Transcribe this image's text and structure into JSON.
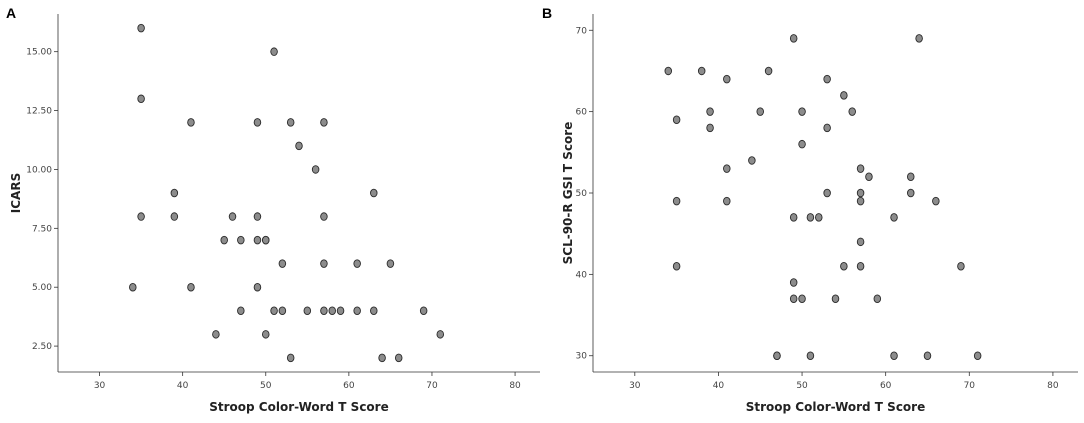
{
  "chart_data": [
    {
      "type": "scatter",
      "panel_label": "A",
      "xlabel": "Stroop Color-Word T Score",
      "ylabel": "ICARS",
      "xlim": [
        25,
        83
      ],
      "ylim": [
        1.4,
        16.6
      ],
      "xticks": [
        30,
        40,
        50,
        60,
        70,
        80
      ],
      "xtick_labels": [
        "30",
        "40",
        "50",
        "60",
        "70",
        "80"
      ],
      "yticks": [
        2.5,
        5,
        7.5,
        10,
        12.5,
        15
      ],
      "ytick_labels": [
        "2.50",
        "5.00",
        "7.50",
        "10.00",
        "12.50",
        "15.00"
      ],
      "grid": false,
      "points": [
        [
          35,
          16
        ],
        [
          35,
          13
        ],
        [
          35,
          8
        ],
        [
          34,
          5
        ],
        [
          39,
          9
        ],
        [
          39,
          8
        ],
        [
          41,
          12
        ],
        [
          41,
          5
        ],
        [
          44,
          3
        ],
        [
          45,
          7
        ],
        [
          46,
          8
        ],
        [
          47,
          7
        ],
        [
          47,
          4
        ],
        [
          49,
          12
        ],
        [
          49,
          8
        ],
        [
          49,
          7
        ],
        [
          49,
          5
        ],
        [
          50,
          7
        ],
        [
          50,
          7
        ],
        [
          50,
          3
        ],
        [
          51,
          15
        ],
        [
          51,
          4
        ],
        [
          52,
          6
        ],
        [
          52,
          4
        ],
        [
          53,
          12
        ],
        [
          53,
          2
        ],
        [
          54,
          11
        ],
        [
          55,
          4
        ],
        [
          56,
          10
        ],
        [
          57,
          12
        ],
        [
          57,
          8
        ],
        [
          57,
          6
        ],
        [
          57,
          4
        ],
        [
          58,
          4
        ],
        [
          59,
          4
        ],
        [
          61,
          6
        ],
        [
          61,
          4
        ],
        [
          63,
          9
        ],
        [
          63,
          4
        ],
        [
          64,
          2
        ],
        [
          65,
          6
        ],
        [
          66,
          2
        ],
        [
          69,
          4
        ],
        [
          71,
          3
        ]
      ]
    },
    {
      "type": "scatter",
      "panel_label": "B",
      "xlabel": "Stroop Color-Word T Score",
      "ylabel": "SCL-90-R GSI T Score",
      "xlim": [
        25,
        83
      ],
      "ylim": [
        28,
        72
      ],
      "xticks": [
        30,
        40,
        50,
        60,
        70,
        80
      ],
      "xtick_labels": [
        "30",
        "40",
        "50",
        "60",
        "70",
        "80"
      ],
      "yticks": [
        30,
        40,
        50,
        60,
        70
      ],
      "ytick_labels": [
        "30",
        "40",
        "50",
        "60",
        "70"
      ],
      "grid": false,
      "points": [
        [
          34,
          65
        ],
        [
          35,
          59
        ],
        [
          35,
          49
        ],
        [
          35,
          41
        ],
        [
          38,
          65
        ],
        [
          39,
          60
        ],
        [
          39,
          58
        ],
        [
          41,
          64
        ],
        [
          41,
          53
        ],
        [
          41,
          49
        ],
        [
          44,
          54
        ],
        [
          45,
          60
        ],
        [
          46,
          65
        ],
        [
          47,
          30
        ],
        [
          47,
          30
        ],
        [
          49,
          69
        ],
        [
          49,
          47
        ],
        [
          49,
          39
        ],
        [
          49,
          37
        ],
        [
          50,
          60
        ],
        [
          50,
          56
        ],
        [
          50,
          37
        ],
        [
          51,
          47
        ],
        [
          51,
          30
        ],
        [
          52,
          47
        ],
        [
          53,
          64
        ],
        [
          53,
          58
        ],
        [
          53,
          50
        ],
        [
          54,
          37
        ],
        [
          55,
          62
        ],
        [
          55,
          41
        ],
        [
          56,
          60
        ],
        [
          57,
          53
        ],
        [
          57,
          50
        ],
        [
          57,
          49
        ],
        [
          57,
          44
        ],
        [
          57,
          41
        ],
        [
          58,
          52
        ],
        [
          59,
          37
        ],
        [
          61,
          47
        ],
        [
          61,
          30
        ],
        [
          63,
          52
        ],
        [
          63,
          50
        ],
        [
          64,
          69
        ],
        [
          65,
          30
        ],
        [
          66,
          49
        ],
        [
          69,
          41
        ],
        [
          71,
          30
        ]
      ]
    }
  ]
}
